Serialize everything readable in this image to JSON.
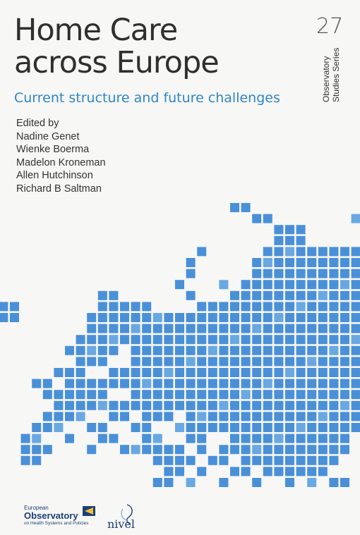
{
  "book": {
    "title_line1": "Home Care",
    "title_line2": "across Europe",
    "series_number": "27",
    "series_line1": "Observatory",
    "series_line2": "Studies Series",
    "subtitle": "Current structure and future challenges",
    "edited_by": "Edited by",
    "editors": [
      "Nadine Genet",
      "Wienke Boerma",
      "Madelon Kroneman",
      "Allen Hutchinson",
      "Richard B Saltman"
    ]
  },
  "logos": {
    "observatory_line1": "European",
    "observatory_line2": "Observatory",
    "observatory_line3": "on Health Systems and Policies",
    "nivel": "nivel"
  },
  "colors": {
    "accent": "#2e86c8",
    "map_squares": "#4a90d9",
    "text": "#2f2f2f",
    "logo": "#1c3f7a"
  }
}
